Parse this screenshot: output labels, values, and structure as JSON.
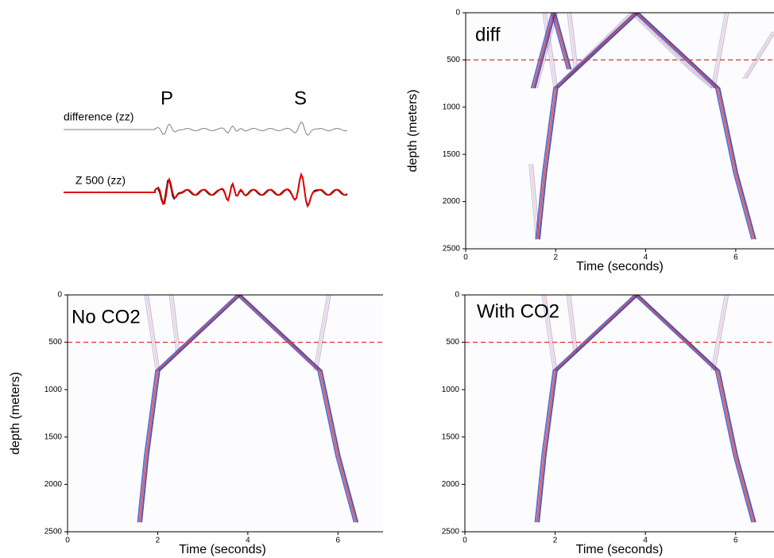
{
  "chart_data": [
    {
      "type": "traces",
      "phase_labels": [
        "P",
        "S"
      ],
      "series": [
        {
          "name": "difference (zz)",
          "color": "#808080"
        },
        {
          "name": "Z 500 (zz)",
          "color": "#e00000"
        }
      ]
    },
    {
      "type": "image",
      "annotation": "diff",
      "xlabel": "Time (seconds)",
      "ylabel": "depth (meters)",
      "xlim": [
        0,
        6.85
      ],
      "ylim": [
        2500,
        0
      ],
      "xticks": [
        0,
        2,
        4,
        6
      ],
      "yticks": [
        0,
        500,
        1000,
        1500,
        2000,
        2500
      ],
      "hline": {
        "value": 500,
        "color": "#e03030"
      }
    },
    {
      "type": "image",
      "annotation": "No CO2",
      "xlabel": "Time (seconds)",
      "ylabel": "depth (meters)",
      "xlim": [
        0,
        7
      ],
      "ylim": [
        2500,
        0
      ],
      "xticks": [
        0,
        2,
        4,
        6
      ],
      "yticks": [
        0,
        500,
        1000,
        1500,
        2000,
        2500
      ],
      "hline": {
        "value": 500,
        "color": "#e03030"
      }
    },
    {
      "type": "image",
      "annotation": "With CO2",
      "xlabel": "Time (seconds)",
      "xlim": [
        0,
        6.85
      ],
      "ylim": [
        2500,
        0
      ],
      "xticks": [
        0,
        2,
        4,
        6
      ],
      "yticks": [
        0,
        500,
        1000,
        1500,
        2000,
        2500
      ],
      "hline": {
        "value": 500,
        "color": "#e03030"
      }
    }
  ]
}
